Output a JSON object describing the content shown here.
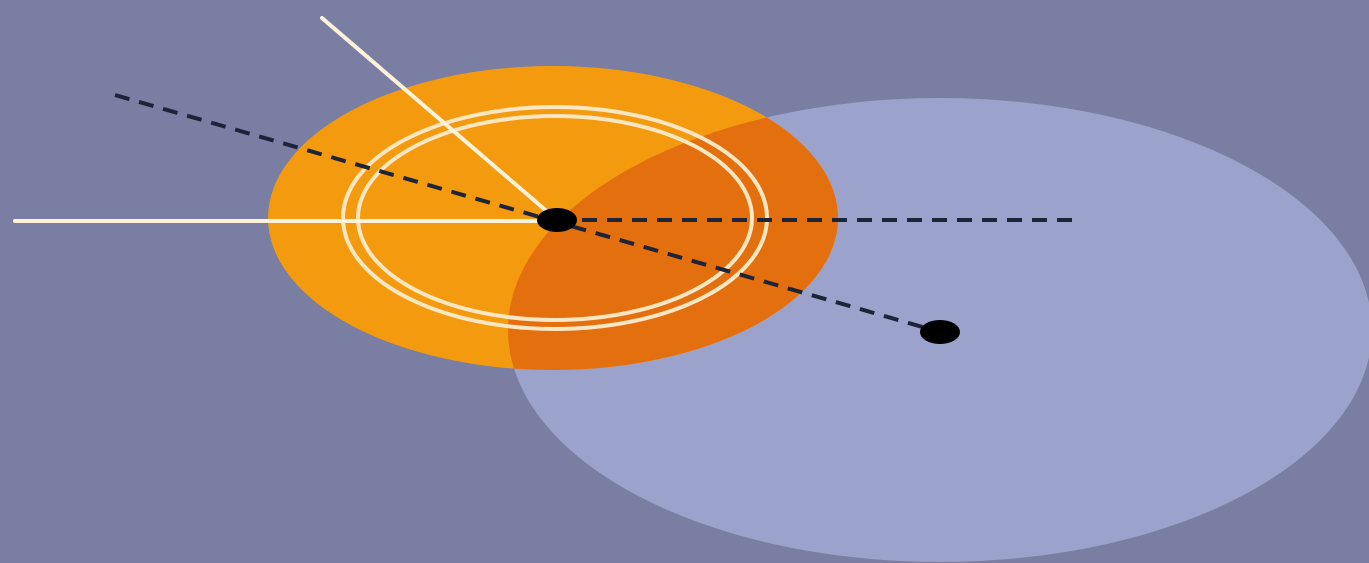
{
  "colors": {
    "background": "#7a7ea3",
    "pale_disc": "#9ba3cc",
    "orange_disc": "#f49a0e",
    "overlap": "#e46f0f",
    "rings": "#fde6c2",
    "white_lines": "#fff2da",
    "dashed_lines": "#1e2438",
    "points": "#000000"
  },
  "icons": {
    "center_point": "black-dot",
    "offset_point": "black-dot"
  }
}
